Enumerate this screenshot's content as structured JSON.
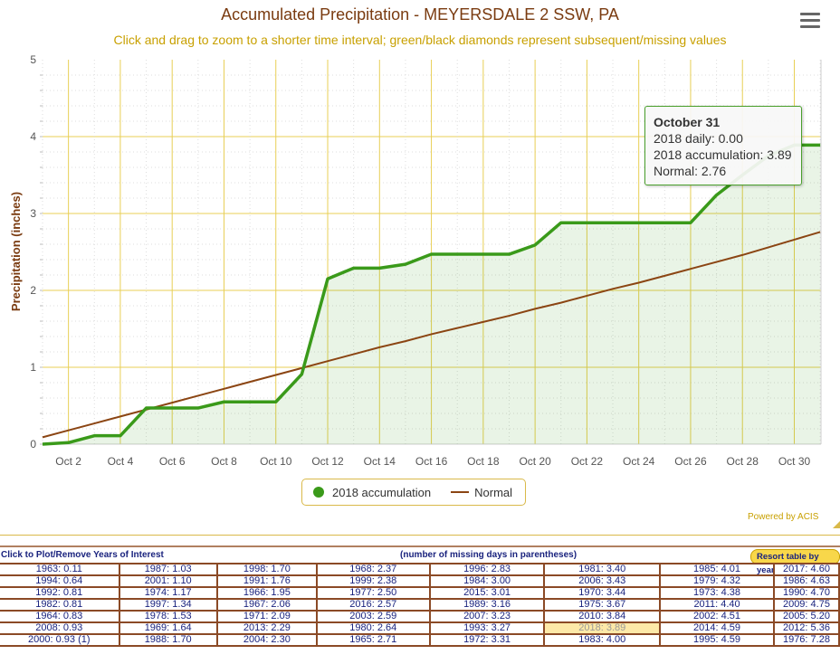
{
  "header": {
    "title": "Accumulated Precipitation - MEYERSDALE 2 SSW, PA",
    "subtitle": "Click and drag to zoom to a shorter time interval; green/black diamonds represent subsequent/missing values",
    "menu_icon": "hamburger-menu-icon"
  },
  "chart_data": {
    "type": "line",
    "title": "Accumulated Precipitation - MEYERSDALE 2 SSW, PA",
    "ylabel": "Precipitation (inches)",
    "xlabel": "",
    "ylim": [
      0,
      5
    ],
    "yticks": [
      "0",
      "1",
      "2",
      "3",
      "4",
      "5"
    ],
    "xticks": [
      "Oct 2",
      "Oct 4",
      "Oct 6",
      "Oct 8",
      "Oct 10",
      "Oct 12",
      "Oct 14",
      "Oct 16",
      "Oct 18",
      "Oct 20",
      "Oct 22",
      "Oct 24",
      "Oct 26",
      "Oct 28",
      "Oct 30"
    ],
    "x": [
      1,
      2,
      3,
      4,
      5,
      6,
      7,
      8,
      9,
      10,
      11,
      12,
      13,
      14,
      15,
      16,
      17,
      18,
      19,
      20,
      21,
      22,
      23,
      24,
      25,
      26,
      27,
      28,
      29,
      30,
      31
    ],
    "series": [
      {
        "name": "2018 accumulation",
        "color": "#3a9a1a",
        "values": [
          0.0,
          0.02,
          0.11,
          0.11,
          0.47,
          0.47,
          0.47,
          0.55,
          0.55,
          0.55,
          0.91,
          2.15,
          2.29,
          2.29,
          2.34,
          2.47,
          2.47,
          2.47,
          2.47,
          2.59,
          2.88,
          2.88,
          2.88,
          2.88,
          2.88,
          2.88,
          3.24,
          3.5,
          3.75,
          3.89,
          3.89
        ]
      },
      {
        "name": "Normal",
        "color": "#8b4513",
        "values": [
          0.09,
          0.18,
          0.27,
          0.36,
          0.45,
          0.54,
          0.63,
          0.72,
          0.81,
          0.9,
          0.99,
          1.08,
          1.17,
          1.26,
          1.34,
          1.43,
          1.51,
          1.59,
          1.67,
          1.76,
          1.84,
          1.93,
          2.02,
          2.1,
          2.19,
          2.28,
          2.37,
          2.46,
          2.56,
          2.66,
          2.76
        ]
      }
    ],
    "legend": "bottom-center",
    "grid": true
  },
  "tooltip": {
    "date": "October 31",
    "daily": "2018 daily: 0.00",
    "accum": "2018 accumulation: 3.89",
    "normal": "Normal: 2.76"
  },
  "legend": {
    "a": "2018 accumulation",
    "b": "Normal"
  },
  "credits": "Powered by ACIS",
  "table": {
    "left_header": "Click to Plot/Remove Years of Interest",
    "center_header": "(number of missing days in parentheses)",
    "resort": "Resort table by year",
    "highlight": "2018: 3.89",
    "rows": [
      [
        "1963: 0.11",
        "1987: 1.03",
        "1998: 1.70",
        "1968: 2.37",
        "1996: 2.83",
        "1981: 3.40",
        "1985: 4.01",
        "2017: 4.60"
      ],
      [
        "1994: 0.64",
        "2001: 1.10",
        "1991: 1.76",
        "1999: 2.38",
        "1984: 3.00",
        "2006: 3.43",
        "1979: 4.32",
        "1986: 4.63"
      ],
      [
        "1992: 0.81",
        "1974: 1.17",
        "1966: 1.95",
        "1977: 2.50",
        "2015: 3.01",
        "1970: 3.44",
        "1973: 4.38",
        "1990: 4.70"
      ],
      [
        "1982: 0.81",
        "1997: 1.34",
        "1967: 2.06",
        "2016: 2.57",
        "1989: 3.16",
        "1975: 3.67",
        "2011: 4.40",
        "2009: 4.75"
      ],
      [
        "1964: 0.83",
        "1978: 1.53",
        "1971: 2.09",
        "2003: 2.59",
        "2007: 3.23",
        "2010: 3.84",
        "2002: 4.51",
        "2005: 5.20"
      ],
      [
        "2008: 0.93",
        "1969: 1.64",
        "2013: 2.29",
        "1980: 2.64",
        "1993: 3.27",
        "2018: 3.89",
        "2014: 4.59",
        "2012: 5.36"
      ],
      [
        "2000: 0.93 (1)",
        "1988: 1.70",
        "2004: 2.30",
        "1965: 2.71",
        "1972: 3.31",
        "1983: 4.00",
        "1995: 4.59",
        "1976: 7.28"
      ]
    ]
  }
}
